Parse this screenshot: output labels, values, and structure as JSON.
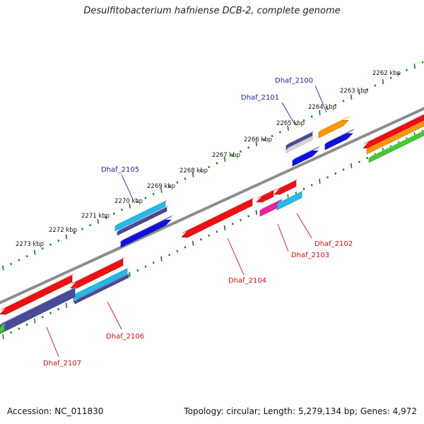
{
  "title": "Desulfitobacterium hafniense DCB-2, complete genome",
  "footer": {
    "accession": "Accession: NC_011830",
    "topology": "Topology: circular; Length: 5,279,134 bp; Genes: 4,972"
  },
  "colors": {
    "backbone": "#8c8c8c",
    "tick": "#1a7a1a",
    "label_top": "#1f1f9e",
    "label_bottom": "#cc1111",
    "red": "#ee1111",
    "navy": "#4a4a9a",
    "cyan": "#22bbee",
    "blue": "#1111dd",
    "orange": "#ff9900",
    "magenta": "#ee2299",
    "green": "#44cc33"
  },
  "kbp_labels": [
    "2262 kbp",
    "2263 kbp",
    "2264 kbp",
    "2265 kbp",
    "2266 kbp",
    "2267 kbp",
    "2268 kbp",
    "2269 kbp",
    "2270 kbp",
    "2271 kbp",
    "2272 kbp",
    "2273 kbp"
  ],
  "gene_labels": [
    "Dhaf_2100",
    "Dhaf_2101",
    "Dhaf_2105",
    "Dhaf_2102",
    "Dhaf_2103",
    "Dhaf_2104",
    "Dhaf_2106",
    "Dhaf_2107"
  ]
}
